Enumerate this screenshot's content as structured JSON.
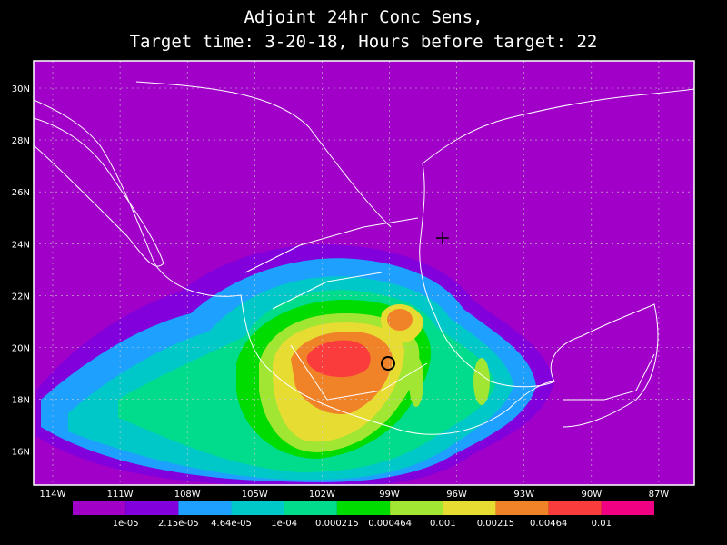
{
  "title": {
    "line1": "Adjoint 24hr Conc Sens,",
    "line2": "Target time: 3-20-18, Hours before target: 22"
  },
  "map": {
    "lat_labels": [
      "30N",
      "28N",
      "26N",
      "24N",
      "22N",
      "20N",
      "18N",
      "16N"
    ],
    "lon_labels": [
      "114W",
      "111W",
      "108W",
      "105W",
      "102W",
      "99W",
      "96W",
      "93W",
      "90W",
      "87W"
    ]
  },
  "legend": {
    "labels": [
      "1e-05",
      "2.15e-05",
      "4.64e-05",
      "1e-04",
      "0.000215",
      "0.000464",
      "0.001",
      "0.00215",
      "0.00464",
      "0.01"
    ]
  }
}
